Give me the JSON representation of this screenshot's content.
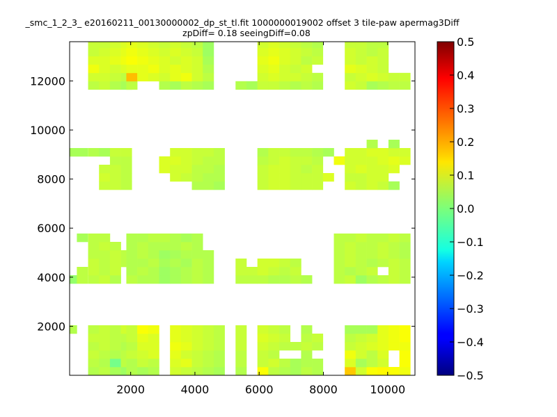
{
  "chart_data": {
    "type": "heatmap",
    "title_line1": "_smc_1_2_3_ e20160211_00130000002_dp_st_tl.fit 1000000019002 offset 3 tile-paw apermag3Diff",
    "title_line2": "zpDiff= 0.18 seeingDiff=0.08",
    "xlim": [
      100,
      10850
    ],
    "ylim": [
      0,
      13600
    ],
    "x_ticks": [
      2000,
      4000,
      6000,
      8000,
      10000
    ],
    "y_ticks": [
      2000,
      4000,
      6000,
      8000,
      10000,
      12000
    ],
    "colorbar": {
      "colormap": "jet",
      "vmin": -0.5,
      "vmax": 0.5,
      "ticks": [
        "0.5",
        "0.4",
        "0.3",
        "0.2",
        "0.1",
        "0.0",
        "−0.1",
        "−0.2",
        "−0.3",
        "−0.4",
        "−0.5"
      ]
    },
    "cell_size": 340,
    "rows": [
      {
        "y0": 0,
        "xs": [
          675,
          1015,
          1355,
          1695,
          1865,
          2205,
          2545,
          3225,
          3565,
          3905,
          4245,
          4585,
          5265,
          5945,
          6285,
          6625,
          6965,
          7305,
          7645,
          8665,
          9005,
          9345,
          9685,
          10025,
          10365
        ],
        "v": [
          0.05,
          0.06,
          0.04,
          0.03,
          0.05,
          0.04,
          0.05,
          0.08,
          0.07,
          0.06,
          0.05,
          0.04,
          0.05,
          0.12,
          0.06,
          0.05,
          0.04,
          0.06,
          0.05,
          0.18,
          0.08,
          0.12,
          0.13,
          0.12,
          0.11
        ]
      },
      {
        "y0": 340,
        "xs": [
          675,
          1015,
          1355,
          1695,
          1865,
          2205,
          2545,
          3225,
          3565,
          3905,
          4245,
          4585,
          5265,
          5945,
          6285,
          6625,
          6965,
          7305,
          7645,
          8665,
          9005,
          9345,
          9685,
          10365
        ],
        "v": [
          0.06,
          0.05,
          -0.01,
          0.06,
          0.05,
          0.07,
          0.06,
          0.09,
          0.1,
          0.07,
          0.06,
          0.05,
          0.06,
          0.07,
          0.08,
          0.06,
          0.04,
          0.05,
          0.05,
          0.09,
          0.04,
          0.06,
          0.08,
          0.12
        ]
      },
      {
        "y0": 680,
        "xs": [
          675,
          1015,
          1355,
          1695,
          1865,
          2205,
          2545,
          3225,
          3565,
          3905,
          4245,
          4585,
          5265,
          5945,
          6285,
          7305,
          8665,
          9005,
          9345,
          9685,
          10365
        ],
        "v": [
          0.07,
          0.06,
          0.05,
          0.06,
          0.07,
          0.08,
          0.09,
          0.1,
          0.08,
          0.07,
          0.06,
          0.05,
          0.06,
          0.07,
          0.06,
          0.05,
          0.11,
          0.08,
          0.06,
          0.09,
          0.12
        ]
      },
      {
        "y0": 1020,
        "xs": [
          675,
          1015,
          1355,
          1695,
          1865,
          2205,
          2545,
          3225,
          3565,
          3905,
          4245,
          4585,
          5265,
          5945,
          6285,
          6625,
          6965,
          7305,
          7645,
          8665,
          9005,
          9345,
          9685,
          10025,
          10365
        ],
        "v": [
          0.06,
          0.07,
          0.06,
          0.05,
          0.06,
          0.09,
          0.09,
          0.11,
          0.1,
          0.08,
          0.07,
          0.06,
          0.07,
          0.08,
          0.07,
          0.06,
          0.06,
          0.07,
          0.06,
          0.07,
          0.08,
          0.09,
          0.1,
          0.11,
          0.11
        ]
      },
      {
        "y0": 1360,
        "xs": [
          675,
          1015,
          1355,
          1695,
          1865,
          2205,
          2545,
          3225,
          3565,
          3905,
          4245,
          4585,
          5265,
          5945,
          6285,
          6625,
          7305,
          7645,
          8665,
          9005,
          9345,
          9685,
          10025,
          10365
        ],
        "v": [
          0.07,
          0.07,
          0.06,
          0.06,
          0.07,
          0.1,
          0.09,
          0.1,
          0.09,
          0.08,
          0.07,
          0.06,
          0.07,
          0.09,
          0.08,
          0.07,
          0.06,
          0.07,
          0.06,
          0.07,
          0.08,
          0.1,
          0.11,
          0.12
        ]
      },
      {
        "y0": 1700,
        "xs": [
          -15,
          675,
          1015,
          1355,
          1695,
          1865,
          2205,
          2545,
          3225,
          3565,
          3905,
          4245,
          4585,
          5265,
          5945,
          6285,
          6625,
          7305,
          8665,
          9005,
          9345,
          9685,
          10025,
          10365
        ],
        "v": [
          0.05,
          0.06,
          0.07,
          0.06,
          0.08,
          0.07,
          0.12,
          0.11,
          0.1,
          0.09,
          0.08,
          0.07,
          0.06,
          0.07,
          0.08,
          0.07,
          0.06,
          0.05,
          0.04,
          0.04,
          0.04,
          0.1,
          0.11,
          0.12
        ]
      },
      {
        "y0": 3740,
        "xs": [
          -15,
          325,
          675,
          1015,
          1355,
          1865,
          2205,
          2545,
          2885,
          3225,
          3565,
          3905,
          4245,
          5265,
          5605,
          5945,
          6285,
          6625,
          6965,
          7305,
          8325,
          8665,
          9005,
          9345,
          9685,
          10025,
          10365
        ],
        "v": [
          0.02,
          0.06,
          0.06,
          0.07,
          0.05,
          0.06,
          0.05,
          0.05,
          0.03,
          0.04,
          0.05,
          0.06,
          0.05,
          0.06,
          0.06,
          0.06,
          0.05,
          0.05,
          0.06,
          0.05,
          0.06,
          0.07,
          0.03,
          0.05,
          0.06,
          0.07,
          0.06
        ]
      },
      {
        "y0": 4080,
        "xs": [
          325,
          675,
          1015,
          1355,
          1865,
          2205,
          2545,
          2885,
          3225,
          3565,
          3905,
          4245,
          5265,
          5605,
          5945,
          6285,
          6625,
          6965,
          8325,
          8665,
          9005,
          9345,
          10025,
          10365
        ],
        "v": [
          0.06,
          0.07,
          0.06,
          0.07,
          0.05,
          0.06,
          0.05,
          0.03,
          0.04,
          0.05,
          0.06,
          0.05,
          0.07,
          0.07,
          0.08,
          0.07,
          0.06,
          0.07,
          0.06,
          0.05,
          0.06,
          0.07,
          0.07,
          0.06
        ]
      },
      {
        "y0": 4420,
        "xs": [
          675,
          1015,
          1355,
          1695,
          1865,
          2205,
          2545,
          2885,
          3225,
          3565,
          3905,
          4245,
          5265,
          5945,
          6285,
          6625,
          6965,
          8325,
          8665,
          9005,
          9345,
          9685,
          10025,
          10365
        ],
        "v": [
          0.07,
          0.06,
          0.07,
          0.06,
          0.05,
          0.05,
          0.06,
          0.04,
          0.05,
          0.04,
          0.06,
          0.05,
          0.07,
          0.08,
          0.08,
          0.07,
          0.06,
          0.06,
          0.07,
          0.06,
          0.05,
          0.06,
          0.07,
          0.06
        ]
      },
      {
        "y0": 4760,
        "xs": [
          675,
          1015,
          1355,
          1695,
          1865,
          2205,
          2545,
          2885,
          3225,
          3565,
          3905,
          4245,
          8325,
          8665,
          9005,
          9345,
          9685,
          10025,
          10365
        ],
        "v": [
          0.06,
          0.06,
          0.07,
          0.06,
          0.05,
          0.06,
          0.05,
          0.03,
          0.04,
          0.05,
          0.05,
          0.05,
          0.06,
          0.07,
          0.06,
          0.06,
          0.07,
          0.06,
          0.05
        ]
      },
      {
        "y0": 5100,
        "xs": [
          675,
          1015,
          1355,
          1865,
          2205,
          2545,
          2885,
          3225,
          3565,
          3905,
          8325,
          8665,
          9005,
          9345,
          9685,
          10025,
          10365
        ],
        "v": [
          0.06,
          0.07,
          0.06,
          0.05,
          0.06,
          0.05,
          0.05,
          0.05,
          0.06,
          0.05,
          0.06,
          0.07,
          0.06,
          0.06,
          0.07,
          0.06,
          0.05
        ]
      },
      {
        "y0": 5440,
        "xs": [
          325,
          675,
          1015,
          1865,
          2205,
          2545,
          2885,
          3225,
          3565,
          3905,
          8325,
          8665,
          9005,
          9345,
          9685,
          10025,
          10365
        ],
        "v": [
          0.04,
          0.06,
          0.06,
          0.05,
          0.05,
          0.06,
          0.06,
          0.05,
          0.04,
          0.05,
          0.06,
          0.06,
          0.07,
          0.06,
          0.06,
          0.07,
          0.06
        ]
      },
      {
        "y0": 7565,
        "xs": [
          1015,
          1355,
          1695,
          3905,
          4245,
          4585,
          5945,
          6285,
          6625,
          6965,
          7305,
          7645,
          8665,
          9005,
          9345,
          9685,
          10025
        ],
        "v": [
          0.07,
          0.07,
          0.06,
          0.05,
          0.05,
          0.04,
          0.07,
          0.08,
          0.08,
          0.07,
          0.07,
          0.07,
          0.08,
          0.07,
          0.08,
          0.07,
          0.04
        ]
      },
      {
        "y0": 7905,
        "xs": [
          1015,
          1355,
          1695,
          3225,
          3565,
          3905,
          4245,
          4585,
          5945,
          6285,
          6625,
          6965,
          7305,
          7645,
          7985,
          8665,
          9005,
          9345,
          9685
        ],
        "v": [
          0.08,
          0.07,
          0.06,
          0.08,
          0.07,
          0.06,
          0.05,
          0.05,
          0.07,
          0.08,
          0.08,
          0.07,
          0.07,
          0.07,
          0.09,
          0.07,
          0.07,
          0.08,
          0.08
        ]
      },
      {
        "y0": 8245,
        "xs": [
          1015,
          1355,
          1695,
          2885,
          3225,
          3565,
          3905,
          4245,
          4585,
          5945,
          6285,
          6625,
          6965,
          7305,
          7645,
          8665,
          9005,
          9345,
          9685,
          10025
        ],
        "v": [
          0.07,
          0.07,
          0.06,
          0.09,
          0.08,
          0.08,
          0.06,
          0.06,
          0.05,
          0.07,
          0.08,
          0.08,
          0.07,
          0.06,
          0.07,
          0.08,
          0.09,
          0.08,
          0.08,
          0.09
        ]
      },
      {
        "y0": 8585,
        "xs": [
          1355,
          1695,
          2885,
          3225,
          3565,
          3905,
          4245,
          4585,
          5945,
          6285,
          6625,
          6965,
          7305,
          7645,
          8325,
          8665,
          9005,
          9345,
          9685,
          10025,
          10365
        ],
        "v": [
          0.06,
          0.06,
          0.09,
          0.09,
          0.08,
          0.07,
          0.06,
          0.06,
          0.06,
          0.07,
          0.08,
          0.07,
          0.07,
          0.06,
          0.11,
          0.08,
          0.08,
          0.08,
          0.09,
          0.1,
          0.09
        ]
      },
      {
        "y0": 8925,
        "xs": [
          -15,
          325,
          675,
          1015,
          1355,
          1695,
          3225,
          3565,
          3905,
          4245,
          4585,
          5945,
          6285,
          6625,
          6965,
          7305,
          7645,
          7985,
          8665,
          9005,
          9345,
          9685,
          10025,
          10365
        ],
        "v": [
          0.04,
          0.04,
          0.05,
          0.04,
          0.07,
          0.07,
          0.08,
          0.08,
          0.07,
          0.07,
          0.06,
          0.05,
          0.07,
          0.07,
          0.06,
          0.06,
          0.05,
          0.04,
          0.08,
          0.08,
          0.09,
          0.09,
          0.08,
          0.08
        ]
      },
      {
        "y0": 9265,
        "xs": [
          9345,
          10025
        ],
        "v": [
          0.05,
          0.04
        ]
      },
      {
        "y0": 11650,
        "xs": [
          675,
          1015,
          1355,
          1695,
          1865,
          2885,
          3225,
          3565,
          3905,
          4245,
          5265,
          5605,
          5945,
          6285,
          6625,
          6965,
          7305,
          7645,
          8665,
          9005,
          9345,
          9685,
          10025,
          10365
        ],
        "v": [
          0.06,
          0.07,
          0.05,
          0.04,
          0.06,
          0.05,
          0.04,
          0.06,
          0.05,
          0.04,
          0.05,
          0.04,
          0.07,
          0.07,
          0.06,
          0.05,
          0.06,
          0.05,
          0.08,
          0.07,
          0.04,
          0.05,
          0.06,
          0.06
        ]
      },
      {
        "y0": 11990,
        "xs": [
          675,
          1015,
          1355,
          1695,
          1865,
          2205,
          2545,
          2885,
          3225,
          3565,
          3905,
          4245,
          5945,
          6285,
          6625,
          6965,
          7305,
          7645,
          8665,
          9005,
          9345,
          9685,
          10025,
          10365
        ],
        "v": [
          0.08,
          0.08,
          0.07,
          0.06,
          0.19,
          0.1,
          0.09,
          0.08,
          0.1,
          0.11,
          0.08,
          0.06,
          0.08,
          0.09,
          0.08,
          0.08,
          0.07,
          0.06,
          0.07,
          0.08,
          0.09,
          0.08,
          0.07,
          0.07
        ]
      },
      {
        "y0": 12330,
        "xs": [
          675,
          1015,
          1355,
          1695,
          1865,
          2205,
          2545,
          2885,
          3225,
          3565,
          3905,
          4245,
          5945,
          6285,
          6625,
          6965,
          7305,
          8665,
          9005,
          9345,
          9685
        ],
        "v": [
          0.11,
          0.09,
          0.08,
          0.09,
          0.1,
          0.1,
          0.11,
          0.09,
          0.1,
          0.09,
          0.08,
          0.05,
          0.09,
          0.1,
          0.08,
          0.07,
          0.08,
          0.1,
          0.09,
          0.08,
          0.07
        ]
      },
      {
        "y0": 12670,
        "xs": [
          675,
          1015,
          1355,
          1695,
          1865,
          2205,
          2545,
          2885,
          3225,
          3565,
          3905,
          4245,
          5945,
          6285,
          6625,
          6965,
          7305,
          7645,
          8665,
          9005,
          9345,
          9685
        ],
        "v": [
          0.09,
          0.09,
          0.1,
          0.11,
          0.12,
          0.11,
          0.1,
          0.09,
          0.08,
          0.09,
          0.08,
          0.04,
          0.1,
          0.11,
          0.09,
          0.08,
          0.06,
          0.07,
          0.08,
          0.07,
          0.08,
          0.07
        ]
      },
      {
        "y0": 13010,
        "xs": [
          675,
          1015,
          1355,
          1695,
          1865,
          2205,
          2545,
          2885,
          3225,
          3565,
          3905,
          4245,
          5945,
          6285,
          6625,
          6965,
          7305,
          7645,
          8665,
          9005,
          9345,
          9685
        ],
        "v": [
          0.07,
          0.08,
          0.09,
          0.1,
          0.11,
          0.1,
          0.09,
          0.08,
          0.09,
          0.08,
          0.07,
          0.03,
          0.09,
          0.1,
          0.09,
          0.08,
          0.07,
          0.06,
          0.08,
          0.07,
          0.06,
          0.07
        ]
      },
      {
        "y0": 13350,
        "xs": [
          675,
          1015,
          1355,
          1695,
          1865,
          2205,
          2545,
          2885,
          3225,
          3565,
          3905,
          4245,
          5945,
          6285,
          6625,
          6965,
          7305,
          7645,
          8665,
          9005,
          9345,
          9685
        ],
        "v": [
          0.07,
          0.07,
          0.08,
          0.09,
          0.1,
          0.09,
          0.08,
          0.07,
          0.08,
          0.07,
          0.06,
          0.03,
          0.08,
          0.09,
          0.08,
          0.07,
          0.06,
          0.05,
          0.07,
          0.07,
          0.06,
          0.06
        ]
      }
    ]
  }
}
